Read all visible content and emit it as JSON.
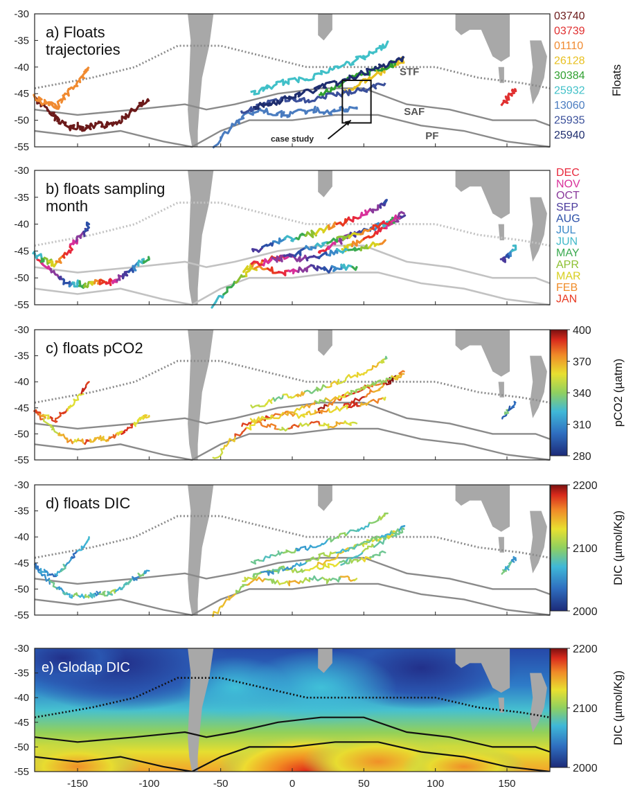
{
  "chart_data": [
    {
      "type": "line",
      "panel": "a",
      "title": "a) Floats trajectories",
      "title_lines": [
        "a) Floats",
        "trajectories"
      ],
      "xlim": [
        -180,
        180
      ],
      "ylim": [
        -55,
        -30
      ],
      "yticks": [
        "-30",
        "-35",
        "-40",
        "-45",
        "-50",
        "-55"
      ],
      "fronts": [
        "STF",
        "SAF",
        "PF"
      ],
      "annotation": "case study",
      "legend_title": "Floats",
      "legend_placement": "right",
      "series": [
        {
          "name": "03740",
          "color": "#6b1a1a",
          "x": [
            -180,
            -172,
            -165,
            -160,
            -155,
            -150,
            -145,
            -140,
            -135,
            -130,
            -125,
            -120,
            -115,
            -110,
            -105,
            -100
          ],
          "y": [
            -45.5,
            -48.0,
            -49.5,
            -50.5,
            -51.5,
            -51.0,
            -51.5,
            -51.2,
            -50.8,
            -51.0,
            -50.5,
            -50.0,
            -49.0,
            -48.0,
            -47.0,
            -46.5
          ]
        },
        {
          "name": "03739",
          "color": "#e03030",
          "x": [
            147,
            150,
            153,
            156
          ],
          "y": [
            -47.0,
            -46.0,
            -45.0,
            -44.0
          ]
        },
        {
          "name": "01110",
          "color": "#f08a30",
          "x": [
            -180,
            -175,
            -170,
            -165,
            -160,
            -155,
            -150,
            -145,
            -142
          ],
          "y": [
            -45.5,
            -46.5,
            -47.0,
            -47.5,
            -46.0,
            -44.5,
            -43.0,
            -41.5,
            -40.0
          ]
        },
        {
          "name": "26128",
          "color": "#e8c020",
          "x": [
            35,
            45,
            55,
            65,
            72,
            78
          ],
          "y": [
            -45.0,
            -43.5,
            -42.0,
            -40.5,
            -39.5,
            -38.5
          ]
        },
        {
          "name": "30384",
          "color": "#30a030",
          "x": [
            18,
            28,
            38,
            48,
            58,
            66,
            72
          ],
          "y": [
            -45.5,
            -44.0,
            -42.5,
            -41.5,
            -40.5,
            -40.0,
            -39.0
          ]
        },
        {
          "name": "25932",
          "color": "#40c0c8",
          "x": [
            -28,
            -18,
            -8,
            2,
            12,
            22,
            32,
            42,
            52,
            62,
            66
          ],
          "y": [
            -45.0,
            -44.0,
            -43.0,
            -42.5,
            -42.0,
            -41.0,
            -40.0,
            -39.0,
            -38.0,
            -36.5,
            -35.5
          ]
        },
        {
          "name": "13060",
          "color": "#4a7cc0",
          "x": [
            -55,
            -45,
            -35,
            -25,
            -15,
            -5,
            5,
            15,
            25,
            35,
            45
          ],
          "y": [
            -55.0,
            -52.0,
            -49.5,
            -48.0,
            -48.5,
            -49.0,
            -48.5,
            -48.0,
            -48.5,
            -48.0,
            -48.0
          ]
        },
        {
          "name": "25935",
          "color": "#3a4f9a",
          "x": [
            -35,
            -25,
            -15,
            -5,
            5,
            15,
            25,
            35,
            45,
            55,
            65
          ],
          "y": [
            -48.5,
            -47.5,
            -46.5,
            -46.0,
            -46.5,
            -46.0,
            -45.5,
            -45.0,
            -44.5,
            -44.0,
            -43.0
          ]
        },
        {
          "name": "25940",
          "color": "#1e2d6e",
          "x": [
            -28,
            -18,
            -8,
            2,
            12,
            22,
            32,
            42,
            52,
            62,
            72,
            78
          ],
          "y": [
            -47.5,
            -47.0,
            -46.5,
            -45.5,
            -44.5,
            -43.5,
            -43.0,
            -42.0,
            -41.0,
            -40.0,
            -39.0,
            -38.0
          ]
        }
      ]
    },
    {
      "type": "line",
      "panel": "b",
      "title": "b) floats sampling month",
      "title_lines": [
        "b) floats sampling",
        "month"
      ],
      "xlim": [
        -180,
        180
      ],
      "ylim": [
        -55,
        -30
      ],
      "yticks": [
        "-30",
        "-35",
        "-40",
        "-45",
        "-50",
        "-55"
      ],
      "encoding": "color = sampling month",
      "legend_placement": "right",
      "months": [
        {
          "label": "DEC",
          "color": "#e8283c"
        },
        {
          "label": "NOV",
          "color": "#d8309a"
        },
        {
          "label": "OCT",
          "color": "#8a3a9c"
        },
        {
          "label": "SEP",
          "color": "#4a3a9c"
        },
        {
          "label": "AUG",
          "color": "#2c50a8"
        },
        {
          "label": "JUL",
          "color": "#3a88c8"
        },
        {
          "label": "JUN",
          "color": "#40b8c8"
        },
        {
          "label": "MAY",
          "color": "#3aaa50"
        },
        {
          "label": "APR",
          "color": "#8cc030"
        },
        {
          "label": "MAR",
          "color": "#d8d020"
        },
        {
          "label": "FEB",
          "color": "#f08c28"
        },
        {
          "label": "JAN",
          "color": "#e83820"
        }
      ]
    },
    {
      "type": "line",
      "panel": "c",
      "title": "c) floats pCO2",
      "xlim": [
        -180,
        180
      ],
      "ylim": [
        -55,
        -30
      ],
      "yticks": [
        "-30",
        "-35",
        "-40",
        "-45",
        "-50",
        "-55"
      ],
      "colorbar": {
        "label": "pCO2 (µatm)",
        "range": [
          280,
          400
        ],
        "ticks": [
          "400",
          "370",
          "340",
          "310",
          "280"
        ]
      }
    },
    {
      "type": "line",
      "panel": "d",
      "title": "d) floats DIC",
      "xlim": [
        -180,
        180
      ],
      "ylim": [
        -55,
        -30
      ],
      "yticks": [
        "-30",
        "-35",
        "-40",
        "-45",
        "-50",
        "-55"
      ],
      "colorbar": {
        "label": "DIC (µmol/Kg)",
        "range": [
          2000,
          2200
        ],
        "ticks": [
          "2200",
          "2100",
          "2000"
        ]
      }
    },
    {
      "type": "heatmap",
      "panel": "e",
      "title": "e) Glodap DIC",
      "xlim": [
        -180,
        180
      ],
      "ylim": [
        -55,
        -30
      ],
      "yticks": [
        "-30",
        "-35",
        "-40",
        "-45",
        "-50",
        "-55"
      ],
      "xticks": [
        "-150",
        "-100",
        "-50",
        "0",
        "50",
        "100",
        "150"
      ],
      "colorbar": {
        "label": "DIC (µmol/Kg)",
        "range": [
          2000,
          2200
        ],
        "ticks": [
          "2200",
          "2100",
          "2000"
        ]
      }
    }
  ]
}
